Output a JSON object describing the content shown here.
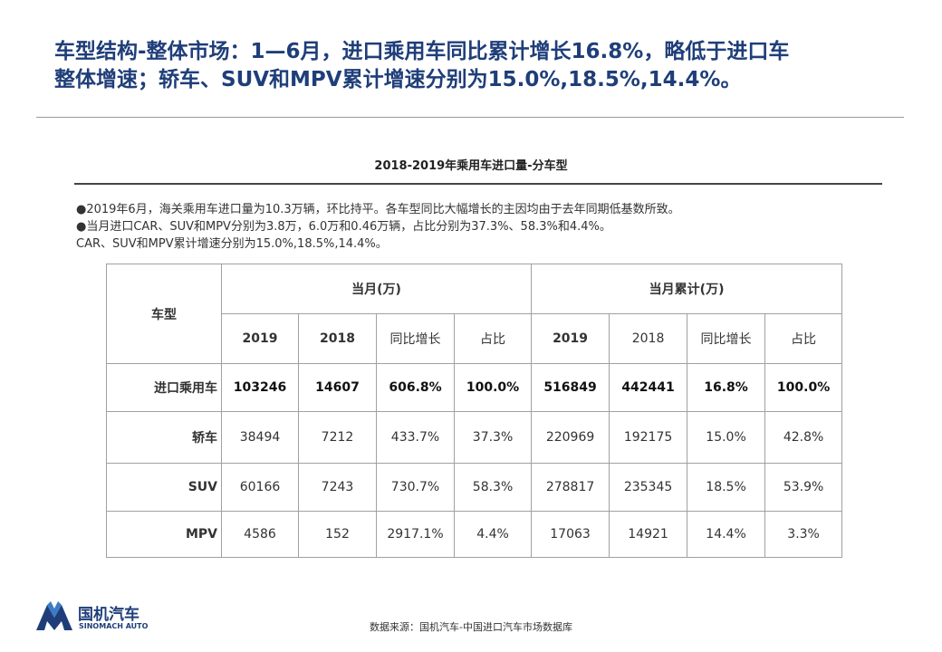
{
  "headline": {
    "line1": "车型结构-整体市场：1—6月，进口乘用车同比累计增长16.8%，略低于进口车",
    "line2": "整体增速；轿车、SUV和MPV累计增速分别为15.0%,18.5%,14.4%。"
  },
  "chart_title": "2018-2019年乘用车进口量-分车型",
  "bullets": [
    "●2019年6月，海关乘用车进口量为10.3万辆，环比持平。各车型同比大幅增长的主因均由于去年同期低基数所致。",
    "●当月进口CAR、SUV和MPV分别为3.8万，6.0万和0.46万辆，占比分别为37.3%、58.3%和4.4%。",
    "CAR、SUV和MPV累计增速分别为15.0%,18.5%,14.4%。"
  ],
  "table": {
    "type_header": "车型",
    "groups": [
      "当月(万)",
      "当月累计(万)"
    ],
    "sub_headers": [
      "2019",
      "2018",
      "同比增长",
      "占比",
      "2019",
      "2018",
      "同比增长",
      "占比"
    ],
    "rows": [
      {
        "label": "进口乘用车",
        "cells": [
          "103246",
          "14607",
          "606.8%",
          "100.0%",
          "516849",
          "442441",
          "16.8%",
          "100.0%"
        ]
      },
      {
        "label": "轿车",
        "cells": [
          "38494",
          "7212",
          "433.7%",
          "37.3%",
          "220969",
          "192175",
          "15.0%",
          "42.8%"
        ]
      },
      {
        "label": "SUV",
        "cells": [
          "60166",
          "7243",
          "730.7%",
          "58.3%",
          "278817",
          "235345",
          "18.5%",
          "53.9%"
        ]
      },
      {
        "label": "MPV",
        "cells": [
          "4586",
          "152",
          "2917.1%",
          "4.4%",
          "17063",
          "14921",
          "14.4%",
          "3.3%"
        ]
      }
    ]
  },
  "logo": {
    "name": "国机汽车",
    "sub": "SINOMACH AUTO",
    "icon": "sinomach-logo-icon"
  },
  "source": "数据来源：国机汽车-中国进口汽车市场数据库",
  "colors": {
    "brand": "#1f3e79",
    "border": "#a0a0a0"
  }
}
